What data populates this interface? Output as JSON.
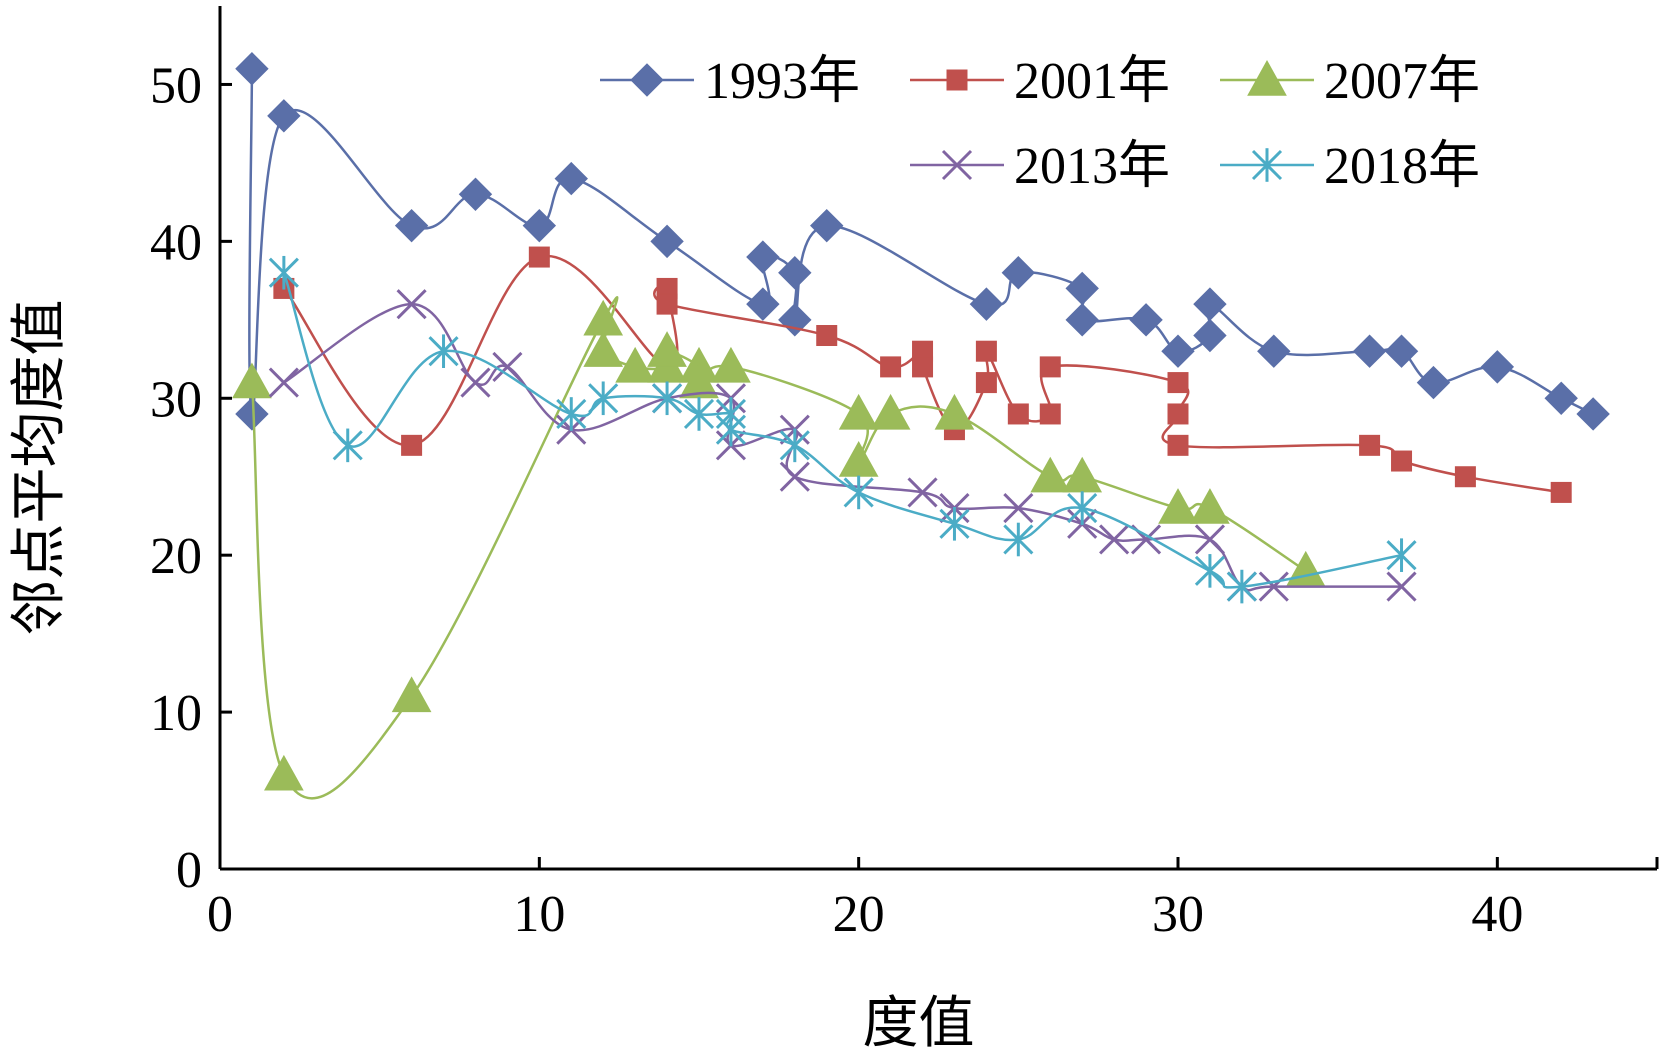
{
  "chart_data": {
    "type": "line",
    "xlabel": "度值",
    "ylabel": "邻点平均度值",
    "xlim": [
      0,
      45
    ],
    "ylim": [
      0,
      55
    ],
    "xticks": [
      0,
      10,
      20,
      30,
      40
    ],
    "yticks": [
      0,
      10,
      20,
      30,
      40,
      50
    ],
    "legend": "top-right",
    "grid": false,
    "series": [
      {
        "name": "1993年",
        "color": "#5a6fa8",
        "marker": "diamond",
        "points": [
          [
            1,
            51
          ],
          [
            1,
            29
          ],
          [
            2,
            48
          ],
          [
            6,
            41
          ],
          [
            8,
            43
          ],
          [
            10,
            41
          ],
          [
            11,
            44
          ],
          [
            14,
            40
          ],
          [
            17,
            36
          ],
          [
            17,
            39
          ],
          [
            18,
            38
          ],
          [
            18,
            35
          ],
          [
            19,
            41
          ],
          [
            24,
            36
          ],
          [
            25,
            38
          ],
          [
            27,
            37
          ],
          [
            27,
            35
          ],
          [
            29,
            35
          ],
          [
            30,
            33
          ],
          [
            31,
            34
          ],
          [
            31,
            36
          ],
          [
            33,
            33
          ],
          [
            36,
            33
          ],
          [
            37,
            33
          ],
          [
            38,
            31
          ],
          [
            40,
            32
          ],
          [
            42,
            30
          ],
          [
            43,
            29
          ]
        ]
      },
      {
        "name": "2001年",
        "color": "#c0504d",
        "marker": "square",
        "points": [
          [
            2,
            37
          ],
          [
            6,
            27
          ],
          [
            10,
            39
          ],
          [
            14,
            32
          ],
          [
            14,
            37
          ],
          [
            14,
            36
          ],
          [
            19,
            34
          ],
          [
            21,
            32
          ],
          [
            22,
            33
          ],
          [
            22,
            32
          ],
          [
            23,
            28
          ],
          [
            24,
            31
          ],
          [
            24,
            33
          ],
          [
            25,
            29
          ],
          [
            26,
            29
          ],
          [
            26,
            32
          ],
          [
            30,
            31
          ],
          [
            30,
            29
          ],
          [
            30,
            27
          ],
          [
            36,
            27
          ],
          [
            37,
            26
          ],
          [
            39,
            25
          ],
          [
            42,
            24
          ]
        ]
      },
      {
        "name": "2007年",
        "color": "#9bbb59",
        "marker": "triangle",
        "points": [
          [
            1,
            31
          ],
          [
            2,
            6
          ],
          [
            6,
            11
          ],
          [
            12,
            35
          ],
          [
            12,
            33
          ],
          [
            13,
            32
          ],
          [
            14,
            32
          ],
          [
            14,
            33
          ],
          [
            15,
            32
          ],
          [
            15,
            31
          ],
          [
            16,
            32
          ],
          [
            20,
            29
          ],
          [
            20,
            26
          ],
          [
            21,
            29
          ],
          [
            23,
            29
          ],
          [
            26,
            25
          ],
          [
            27,
            25
          ],
          [
            30,
            23
          ],
          [
            31,
            23
          ],
          [
            34,
            19
          ]
        ]
      },
      {
        "name": "2013年",
        "color": "#8064a2",
        "marker": "x",
        "points": [
          [
            2,
            31
          ],
          [
            6,
            36
          ],
          [
            8,
            31
          ],
          [
            9,
            32
          ],
          [
            11,
            28
          ],
          [
            14,
            30
          ],
          [
            16,
            30
          ],
          [
            16,
            27
          ],
          [
            18,
            28
          ],
          [
            18,
            25
          ],
          [
            22,
            24
          ],
          [
            23,
            23
          ],
          [
            25,
            23
          ],
          [
            27,
            22
          ],
          [
            28,
            21
          ],
          [
            29,
            21
          ],
          [
            31,
            21
          ],
          [
            32,
            18
          ],
          [
            33,
            18
          ],
          [
            37,
            18
          ]
        ]
      },
      {
        "name": "2018年",
        "color": "#4bacc6",
        "marker": "asterisk",
        "points": [
          [
            2,
            38
          ],
          [
            4,
            27
          ],
          [
            7,
            33
          ],
          [
            11,
            29
          ],
          [
            12,
            30
          ],
          [
            14,
            30
          ],
          [
            15,
            29
          ],
          [
            16,
            29
          ],
          [
            16,
            28
          ],
          [
            18,
            27
          ],
          [
            20,
            24
          ],
          [
            23,
            22
          ],
          [
            25,
            21
          ],
          [
            27,
            23
          ],
          [
            31,
            19
          ],
          [
            32,
            18
          ],
          [
            37,
            20
          ]
        ]
      }
    ]
  }
}
